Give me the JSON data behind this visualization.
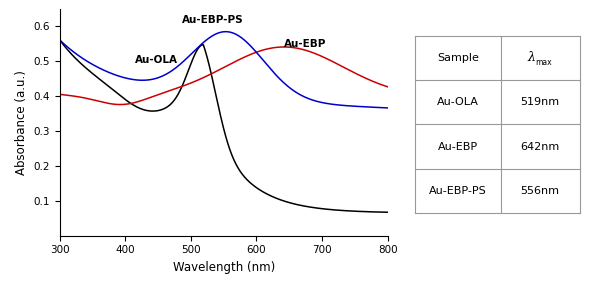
{
  "xlim": [
    300,
    800
  ],
  "ylim": [
    0.0,
    0.65
  ],
  "xlabel": "Wavelength (nm)",
  "ylabel": "Absorbance (a.u.)",
  "xticks": [
    300,
    400,
    500,
    600,
    700,
    800
  ],
  "yticks": [
    0.1,
    0.2,
    0.3,
    0.4,
    0.5,
    0.6
  ],
  "au_ola_color": "#000000",
  "au_ebp_color": "#cc0000",
  "au_ebp_ps_color": "#0000cc",
  "table_rows": [
    [
      "Au-OLA",
      "519nm"
    ],
    [
      "Au-EBP",
      "642nm"
    ],
    [
      "Au-EBP-PS",
      "556nm"
    ]
  ],
  "label_au_ola": "Au-OLA",
  "label_au_ebp": "Au-EBP",
  "label_au_ebp_ps": "Au-EBP-PS",
  "background_color": "#ffffff"
}
